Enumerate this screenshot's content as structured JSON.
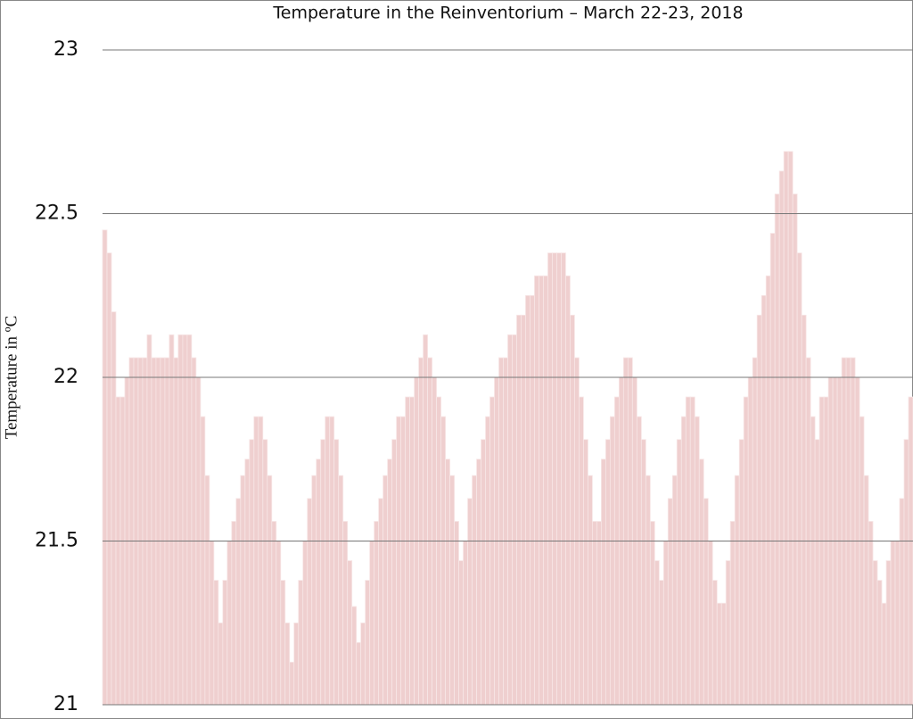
{
  "chart_data": {
    "type": "bar",
    "title": "Temperature in the Reinventorium – March 22-23, 2018",
    "y_label": "Temperature in ºC",
    "color": "#efcfcf",
    "ylim": [
      21,
      23
    ],
    "yticks": [
      21,
      21.5,
      22,
      22.5,
      23
    ],
    "grid": true,
    "values": [
      22.45,
      22.38,
      22.2,
      21.94,
      21.94,
      22.0,
      22.06,
      22.06,
      22.06,
      22.06,
      22.13,
      22.06,
      22.06,
      22.06,
      22.06,
      22.13,
      22.06,
      22.13,
      22.13,
      22.13,
      22.06,
      22.0,
      21.88,
      21.7,
      21.5,
      21.38,
      21.25,
      21.38,
      21.5,
      21.56,
      21.63,
      21.7,
      21.75,
      21.81,
      21.88,
      21.88,
      21.81,
      21.7,
      21.56,
      21.5,
      21.38,
      21.25,
      21.13,
      21.25,
      21.38,
      21.5,
      21.63,
      21.7,
      21.75,
      21.81,
      21.88,
      21.88,
      21.81,
      21.7,
      21.56,
      21.44,
      21.3,
      21.19,
      21.25,
      21.38,
      21.5,
      21.56,
      21.63,
      21.7,
      21.75,
      21.81,
      21.88,
      21.88,
      21.94,
      21.94,
      22.0,
      22.06,
      22.13,
      22.06,
      22.0,
      21.94,
      21.88,
      21.75,
      21.7,
      21.56,
      21.44,
      21.5,
      21.63,
      21.7,
      21.75,
      21.81,
      21.88,
      21.94,
      22.0,
      22.06,
      22.06,
      22.13,
      22.13,
      22.19,
      22.19,
      22.25,
      22.25,
      22.31,
      22.31,
      22.31,
      22.38,
      22.38,
      22.38,
      22.38,
      22.31,
      22.19,
      22.06,
      21.94,
      21.81,
      21.7,
      21.56,
      21.56,
      21.75,
      21.81,
      21.88,
      21.94,
      22.0,
      22.06,
      22.06,
      22.0,
      21.88,
      21.81,
      21.7,
      21.56,
      21.44,
      21.38,
      21.5,
      21.63,
      21.7,
      21.81,
      21.88,
      21.94,
      21.94,
      21.88,
      21.75,
      21.63,
      21.5,
      21.38,
      21.31,
      21.31,
      21.44,
      21.56,
      21.7,
      21.81,
      21.94,
      22.0,
      22.06,
      22.19,
      22.25,
      22.31,
      22.44,
      22.56,
      22.63,
      22.69,
      22.69,
      22.56,
      22.38,
      22.19,
      22.06,
      21.88,
      21.81,
      21.94,
      21.94,
      22.0,
      22.0,
      22.0,
      22.06,
      22.06,
      22.06,
      22.0,
      21.88,
      21.7,
      21.56,
      21.44,
      21.38,
      21.31,
      21.44,
      21.5,
      21.5,
      21.63,
      21.81,
      21.94
    ]
  }
}
